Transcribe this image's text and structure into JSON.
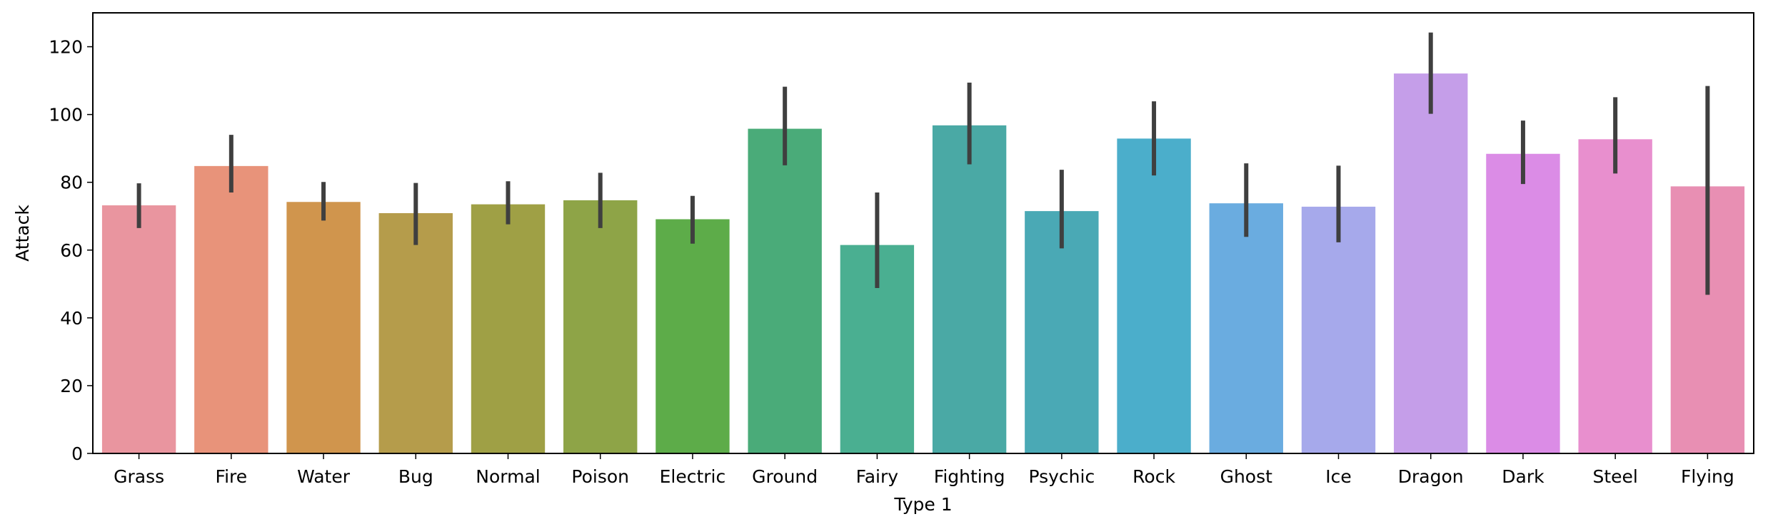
{
  "chart_data": {
    "type": "bar",
    "xlabel": "Type 1",
    "ylabel": "Attack",
    "ylim": [
      0,
      130
    ],
    "yticks": [
      0,
      20,
      40,
      60,
      80,
      100,
      120
    ],
    "grid": false,
    "categories": [
      "Grass",
      "Fire",
      "Water",
      "Bug",
      "Normal",
      "Poison",
      "Electric",
      "Ground",
      "Fairy",
      "Fighting",
      "Psychic",
      "Rock",
      "Ghost",
      "Ice",
      "Dragon",
      "Dark",
      "Steel",
      "Flying"
    ],
    "values": [
      73.2,
      84.8,
      74.2,
      70.9,
      73.5,
      74.7,
      69.1,
      95.8,
      61.5,
      96.8,
      71.5,
      92.9,
      73.8,
      72.8,
      112.1,
      88.4,
      92.7,
      78.8
    ],
    "error_low": [
      66.5,
      77,
      68.7,
      61.5,
      67.6,
      66.5,
      61.9,
      85,
      48.8,
      85.3,
      60.5,
      82,
      63.9,
      62.3,
      100.2,
      79.5,
      82.6,
      46.8
    ],
    "error_high": [
      79.7,
      94,
      80.1,
      79.8,
      80.3,
      82.8,
      76,
      108.2,
      77,
      109.4,
      83.7,
      103.9,
      85.6,
      84.9,
      124.2,
      98.2,
      105.1,
      108.4
    ],
    "colors": [
      "#e9959f",
      "#e8937a",
      "#d0954d",
      "#b59c4b",
      "#9fa045",
      "#8ea447",
      "#5dac49",
      "#4aab79",
      "#4aaf91",
      "#4aa9a5",
      "#4aa9b5",
      "#4baecb",
      "#6aace0",
      "#a6a9eb",
      "#c59ee9",
      "#db8ce6",
      "#e88fce",
      "#e88fb3"
    ],
    "error_color": "#3f3f3f"
  }
}
